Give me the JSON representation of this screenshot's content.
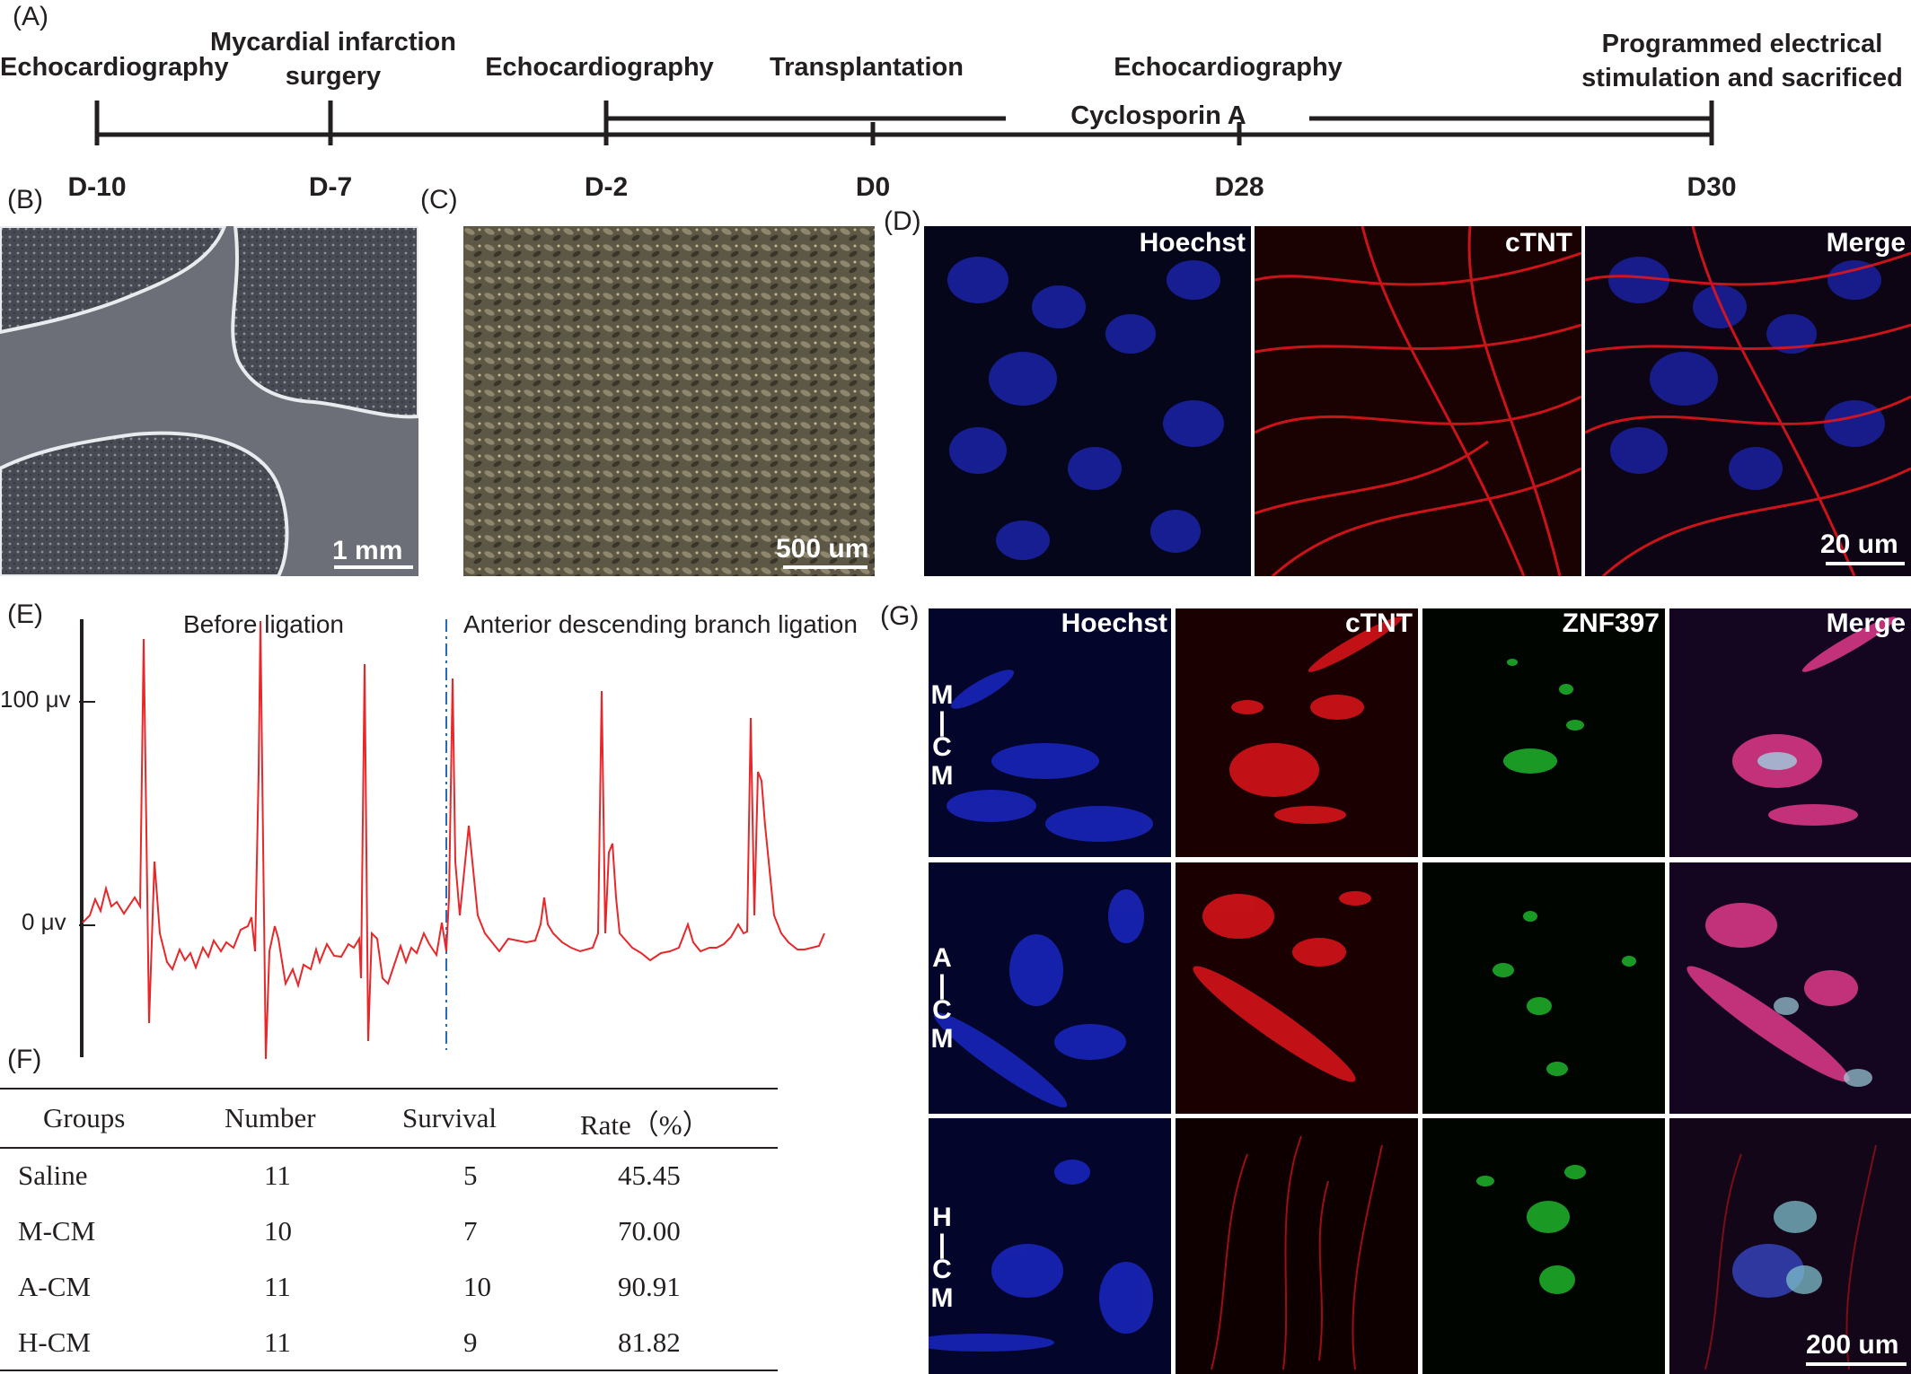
{
  "panels": {
    "A": "(A)",
    "B": "(B)",
    "C": "(C)",
    "D": "(D)",
    "E": "(E)",
    "F": "(F)",
    "G": "(G)"
  },
  "timeline": {
    "events": [
      "Echocardiography",
      "Mycardial infarction\nsurgery",
      "Echocardiography",
      "Transplantation",
      "Echocardiography",
      "Programmed electrical\nstimulation and  sacrificed"
    ],
    "days": [
      "D-10",
      "D-7",
      "D-2",
      "D0",
      "D28",
      "D30"
    ],
    "drug": "Cyclosporin A"
  },
  "panel_b": {
    "scale": "1 mm"
  },
  "panel_c": {
    "scale": "500 um"
  },
  "panel_d": {
    "channels": [
      "Hoechst",
      "cTNT",
      "Merge"
    ],
    "scale": "20 um"
  },
  "ecg": {
    "label_before": "Before ligation",
    "label_after": "Anterior descending branch ligation",
    "y_ticks": [
      "100 μv",
      "0 μv"
    ],
    "trace_color": "#e8272a",
    "divider_color": "#2b6bb5"
  },
  "table": {
    "headers": [
      "Groups",
      "Number",
      "Survival",
      "Rate（%）"
    ],
    "rows": [
      [
        "Saline",
        "11",
        "5",
        "45.45"
      ],
      [
        "M-CM",
        "10",
        "7",
        "70.00"
      ],
      [
        "A-CM",
        "11",
        "10",
        "90.91"
      ],
      [
        "H-CM",
        "11",
        "9",
        "81.82"
      ]
    ]
  },
  "panel_g": {
    "channels": [
      "Hoechst",
      "cTNT",
      "ZNF397",
      "Merge"
    ],
    "rows": [
      [
        "M",
        "|",
        "C",
        "M"
      ],
      [
        "A",
        "|",
        "C",
        "M"
      ],
      [
        "H",
        "|",
        "C",
        "M"
      ]
    ],
    "scale": "200 um"
  },
  "colors": {
    "hoechst": "#1d2bd6",
    "ctnt": "#e0151b",
    "znf397": "#1fb52b",
    "axis": "#231f20"
  }
}
